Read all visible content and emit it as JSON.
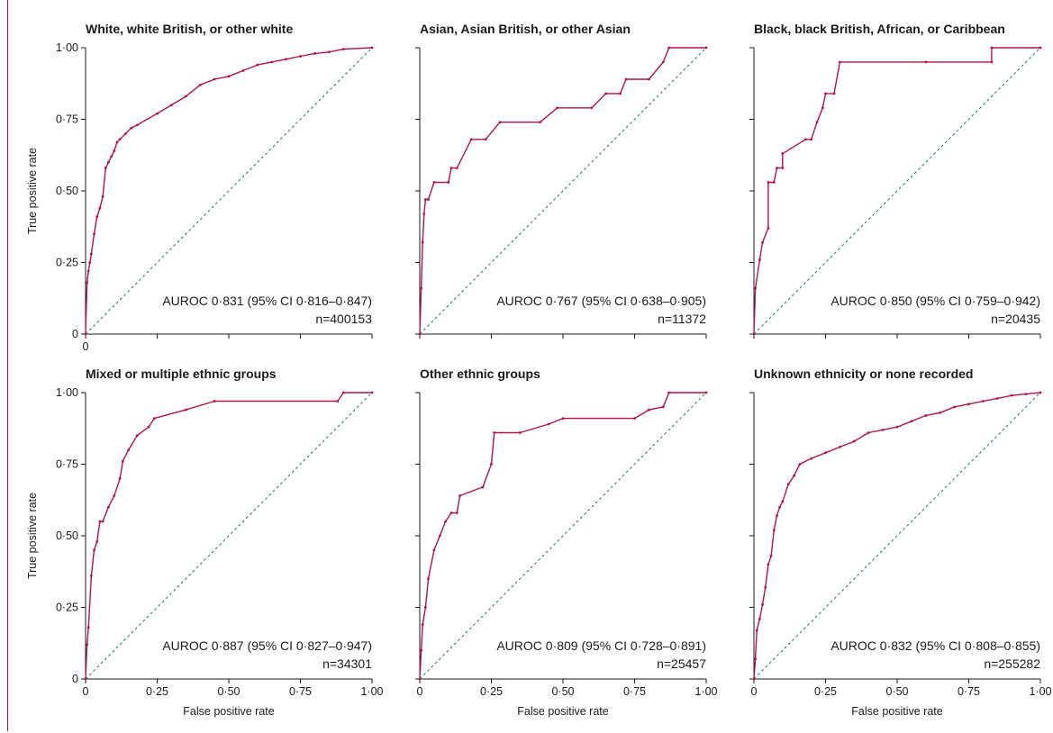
{
  "figure": {
    "xlabel": "False positive rate",
    "ylabel": "True positive rate",
    "colors": {
      "curve": "#b3124f",
      "diagonal": "#3a7a7a",
      "axis": "#1a1a1a",
      "border": "#b3124f"
    }
  },
  "chart_data": [
    {
      "type": "line",
      "title": "White, white British, or other white",
      "xlabel": "",
      "ylabel": "True positive rate",
      "xlim": [
        0,
        1
      ],
      "ylim": [
        0,
        1
      ],
      "x_ticks": [
        "0",
        "",
        "",
        "",
        ""
      ],
      "y_ticks": [
        "0",
        "0·25",
        "0·50",
        "0·75",
        "1·00"
      ],
      "auroc": "AUROC 0·831 (95% CI 0·816–0·847)",
      "n": "n=400153",
      "series": [
        {
          "x": [
            0,
            0.005,
            0.01,
            0.015,
            0.02,
            0.03,
            0.04,
            0.05,
            0.06,
            0.07,
            0.08,
            0.09,
            0.1,
            0.11,
            0.12,
            0.14,
            0.16,
            0.18,
            0.25,
            0.3,
            0.35,
            0.4,
            0.45,
            0.5,
            0.55,
            0.6,
            0.65,
            0.7,
            0.75,
            0.8,
            0.85,
            0.9,
            1.0
          ],
          "y": [
            0,
            0.18,
            0.22,
            0.25,
            0.28,
            0.35,
            0.41,
            0.44,
            0.48,
            0.58,
            0.6,
            0.62,
            0.64,
            0.67,
            0.68,
            0.7,
            0.72,
            0.73,
            0.77,
            0.8,
            0.83,
            0.87,
            0.89,
            0.9,
            0.92,
            0.94,
            0.95,
            0.96,
            0.97,
            0.98,
            0.985,
            0.995,
            1.0
          ]
        }
      ]
    },
    {
      "type": "line",
      "title": "Asian, Asian British, or other Asian",
      "xlabel": "",
      "ylabel": "",
      "xlim": [
        0,
        1
      ],
      "ylim": [
        0,
        1
      ],
      "x_ticks": [
        "",
        "",
        "",
        "",
        ""
      ],
      "y_ticks": [
        "",
        "",
        "",
        "",
        ""
      ],
      "auroc": "AUROC 0·767 (95% CI 0·638–0·905)",
      "n": "n=11372",
      "series": [
        {
          "x": [
            0,
            0.005,
            0.01,
            0.015,
            0.02,
            0.03,
            0.05,
            0.1,
            0.11,
            0.13,
            0.18,
            0.23,
            0.28,
            0.42,
            0.48,
            0.6,
            0.65,
            0.7,
            0.72,
            0.8,
            0.85,
            0.87,
            1.0
          ],
          "y": [
            0,
            0.16,
            0.32,
            0.42,
            0.47,
            0.47,
            0.53,
            0.53,
            0.58,
            0.58,
            0.68,
            0.68,
            0.74,
            0.74,
            0.79,
            0.79,
            0.84,
            0.84,
            0.89,
            0.89,
            0.95,
            1.0,
            1.0
          ]
        }
      ]
    },
    {
      "type": "line",
      "title": "Black, black British, African, or Caribbean",
      "xlabel": "",
      "ylabel": "",
      "xlim": [
        0,
        1
      ],
      "ylim": [
        0,
        1
      ],
      "x_ticks": [
        "",
        "",
        "",
        "",
        ""
      ],
      "y_ticks": [
        "",
        "",
        "",
        "",
        ""
      ],
      "auroc": "AUROC 0·850 (95% CI 0·759–0·942)",
      "n": "n=20435",
      "series": [
        {
          "x": [
            0,
            0.005,
            0.02,
            0.03,
            0.05,
            0.05,
            0.07,
            0.08,
            0.1,
            0.1,
            0.18,
            0.2,
            0.22,
            0.24,
            0.25,
            0.28,
            0.3,
            0.6,
            0.83,
            0.83,
            1.0
          ],
          "y": [
            0,
            0.16,
            0.26,
            0.32,
            0.37,
            0.53,
            0.53,
            0.58,
            0.58,
            0.63,
            0.68,
            0.68,
            0.74,
            0.79,
            0.84,
            0.84,
            0.95,
            0.95,
            0.95,
            1.0,
            1.0
          ]
        }
      ]
    },
    {
      "type": "line",
      "title": "Mixed or multiple ethnic groups",
      "xlabel": "False positive rate",
      "ylabel": "True positive rate",
      "xlim": [
        0,
        1
      ],
      "ylim": [
        0,
        1
      ],
      "x_ticks": [
        "0",
        "0·25",
        "0·50",
        "0·75",
        "1·00"
      ],
      "y_ticks": [
        "0",
        "0·25",
        "0·50",
        "0·75",
        "1·00"
      ],
      "auroc": "AUROC 0·887 (95% CI 0·827–0·947)",
      "n": "n=34301",
      "series": [
        {
          "x": [
            0,
            0.005,
            0.01,
            0.02,
            0.03,
            0.04,
            0.05,
            0.06,
            0.08,
            0.1,
            0.12,
            0.13,
            0.15,
            0.18,
            0.22,
            0.24,
            0.35,
            0.45,
            0.88,
            0.9,
            1.0
          ],
          "y": [
            0,
            0.12,
            0.18,
            0.36,
            0.45,
            0.48,
            0.55,
            0.55,
            0.6,
            0.64,
            0.7,
            0.76,
            0.8,
            0.85,
            0.88,
            0.91,
            0.94,
            0.97,
            0.97,
            1.0,
            1.0
          ]
        }
      ]
    },
    {
      "type": "line",
      "title": "Other ethnic groups",
      "xlabel": "False positive rate",
      "ylabel": "",
      "xlim": [
        0,
        1
      ],
      "ylim": [
        0,
        1
      ],
      "x_ticks": [
        "0",
        "0·25",
        "0·50",
        "0·75",
        "1·00"
      ],
      "y_ticks": [
        "",
        "",
        "",
        "",
        ""
      ],
      "auroc": "AUROC 0·809 (95% CI 0·728–0·891)",
      "n": "n=25457",
      "series": [
        {
          "x": [
            0,
            0.005,
            0.01,
            0.02,
            0.03,
            0.05,
            0.07,
            0.09,
            0.11,
            0.13,
            0.14,
            0.22,
            0.25,
            0.26,
            0.35,
            0.45,
            0.5,
            0.75,
            0.8,
            0.85,
            0.87,
            1.0
          ],
          "y": [
            0,
            0.1,
            0.19,
            0.25,
            0.35,
            0.45,
            0.5,
            0.55,
            0.58,
            0.58,
            0.64,
            0.67,
            0.75,
            0.86,
            0.86,
            0.89,
            0.91,
            0.91,
            0.94,
            0.95,
            1.0,
            1.0
          ]
        }
      ]
    },
    {
      "type": "line",
      "title": "Unknown ethnicity or none recorded",
      "xlabel": "False positive rate",
      "ylabel": "",
      "xlim": [
        0,
        1
      ],
      "ylim": [
        0,
        1
      ],
      "x_ticks": [
        "0",
        "0·25",
        "0·50",
        "0·75",
        "1·00"
      ],
      "y_ticks": [
        "",
        "",
        "",
        "",
        ""
      ],
      "auroc": "AUROC 0·832 (95% CI 0·808–0·855)",
      "n": "n=255282",
      "series": [
        {
          "x": [
            0,
            0.005,
            0.01,
            0.02,
            0.03,
            0.04,
            0.05,
            0.06,
            0.07,
            0.08,
            0.09,
            0.1,
            0.12,
            0.14,
            0.16,
            0.2,
            0.25,
            0.3,
            0.35,
            0.4,
            0.45,
            0.5,
            0.55,
            0.6,
            0.65,
            0.7,
            0.75,
            0.8,
            0.85,
            0.9,
            0.95,
            1.0
          ],
          "y": [
            0,
            0.07,
            0.17,
            0.21,
            0.26,
            0.32,
            0.4,
            0.43,
            0.52,
            0.57,
            0.6,
            0.62,
            0.68,
            0.71,
            0.75,
            0.77,
            0.79,
            0.81,
            0.83,
            0.86,
            0.87,
            0.88,
            0.9,
            0.92,
            0.93,
            0.95,
            0.96,
            0.97,
            0.98,
            0.99,
            0.995,
            1.0
          ]
        }
      ]
    }
  ]
}
